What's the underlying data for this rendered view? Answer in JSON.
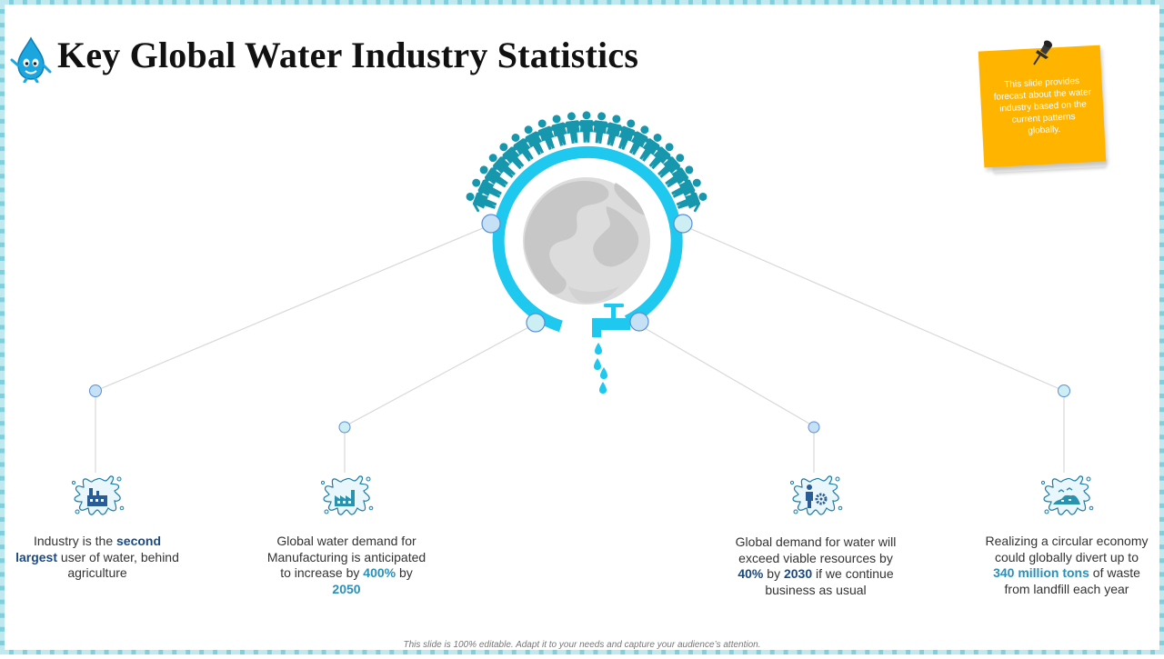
{
  "title": "Key Global Water Industry Statistics",
  "note": {
    "text": "This slide provides forecast about the water industry based on the current patterns globally.",
    "color": "#ffb400"
  },
  "colors": {
    "ring": "#1ec8ef",
    "people": "#1797ad",
    "globe": "#cccccc",
    "icon_stroke": "#1e7ea8",
    "connector": "#d8d8d8"
  },
  "icons": {
    "header_mascot": "water-drop-mascot-icon",
    "pin": "pushpin-icon",
    "people": "people-crowd-icon",
    "globe": "globe-icon",
    "tap": "water-tap-icon",
    "stat_1": "factory-splash-icon",
    "stat_2": "manufacturing-plant-splash-icon",
    "stat_3": "person-gear-splash-icon",
    "stat_4": "landfill-splash-icon"
  },
  "stats": [
    {
      "parts": [
        {
          "text": "Industry is the "
        },
        {
          "text": "second largest",
          "style": "dark"
        },
        {
          "text": " user of water, behind agriculture"
        }
      ]
    },
    {
      "parts": [
        {
          "text": "Global water demand for Manufacturing is anticipated to increase by "
        },
        {
          "text": "400%",
          "style": "teal"
        },
        {
          "text": " by "
        },
        {
          "text": "2050",
          "style": "teal"
        }
      ]
    },
    {
      "parts": [
        {
          "text": "Global demand for water will exceed viable resources by "
        },
        {
          "text": "40%",
          "style": "dark"
        },
        {
          "text": " by "
        },
        {
          "text": "2030",
          "style": "dark"
        },
        {
          "text": " if we continue business as usual"
        }
      ]
    },
    {
      "parts": [
        {
          "text": "Realizing a circular economy could globally divert up to "
        },
        {
          "text": "340 million tons",
          "style": "teal"
        },
        {
          "text": " of waste from landfill each year"
        }
      ]
    }
  ],
  "footer": "This slide is 100% editable. Adapt it to your needs and capture your audience’s attention."
}
